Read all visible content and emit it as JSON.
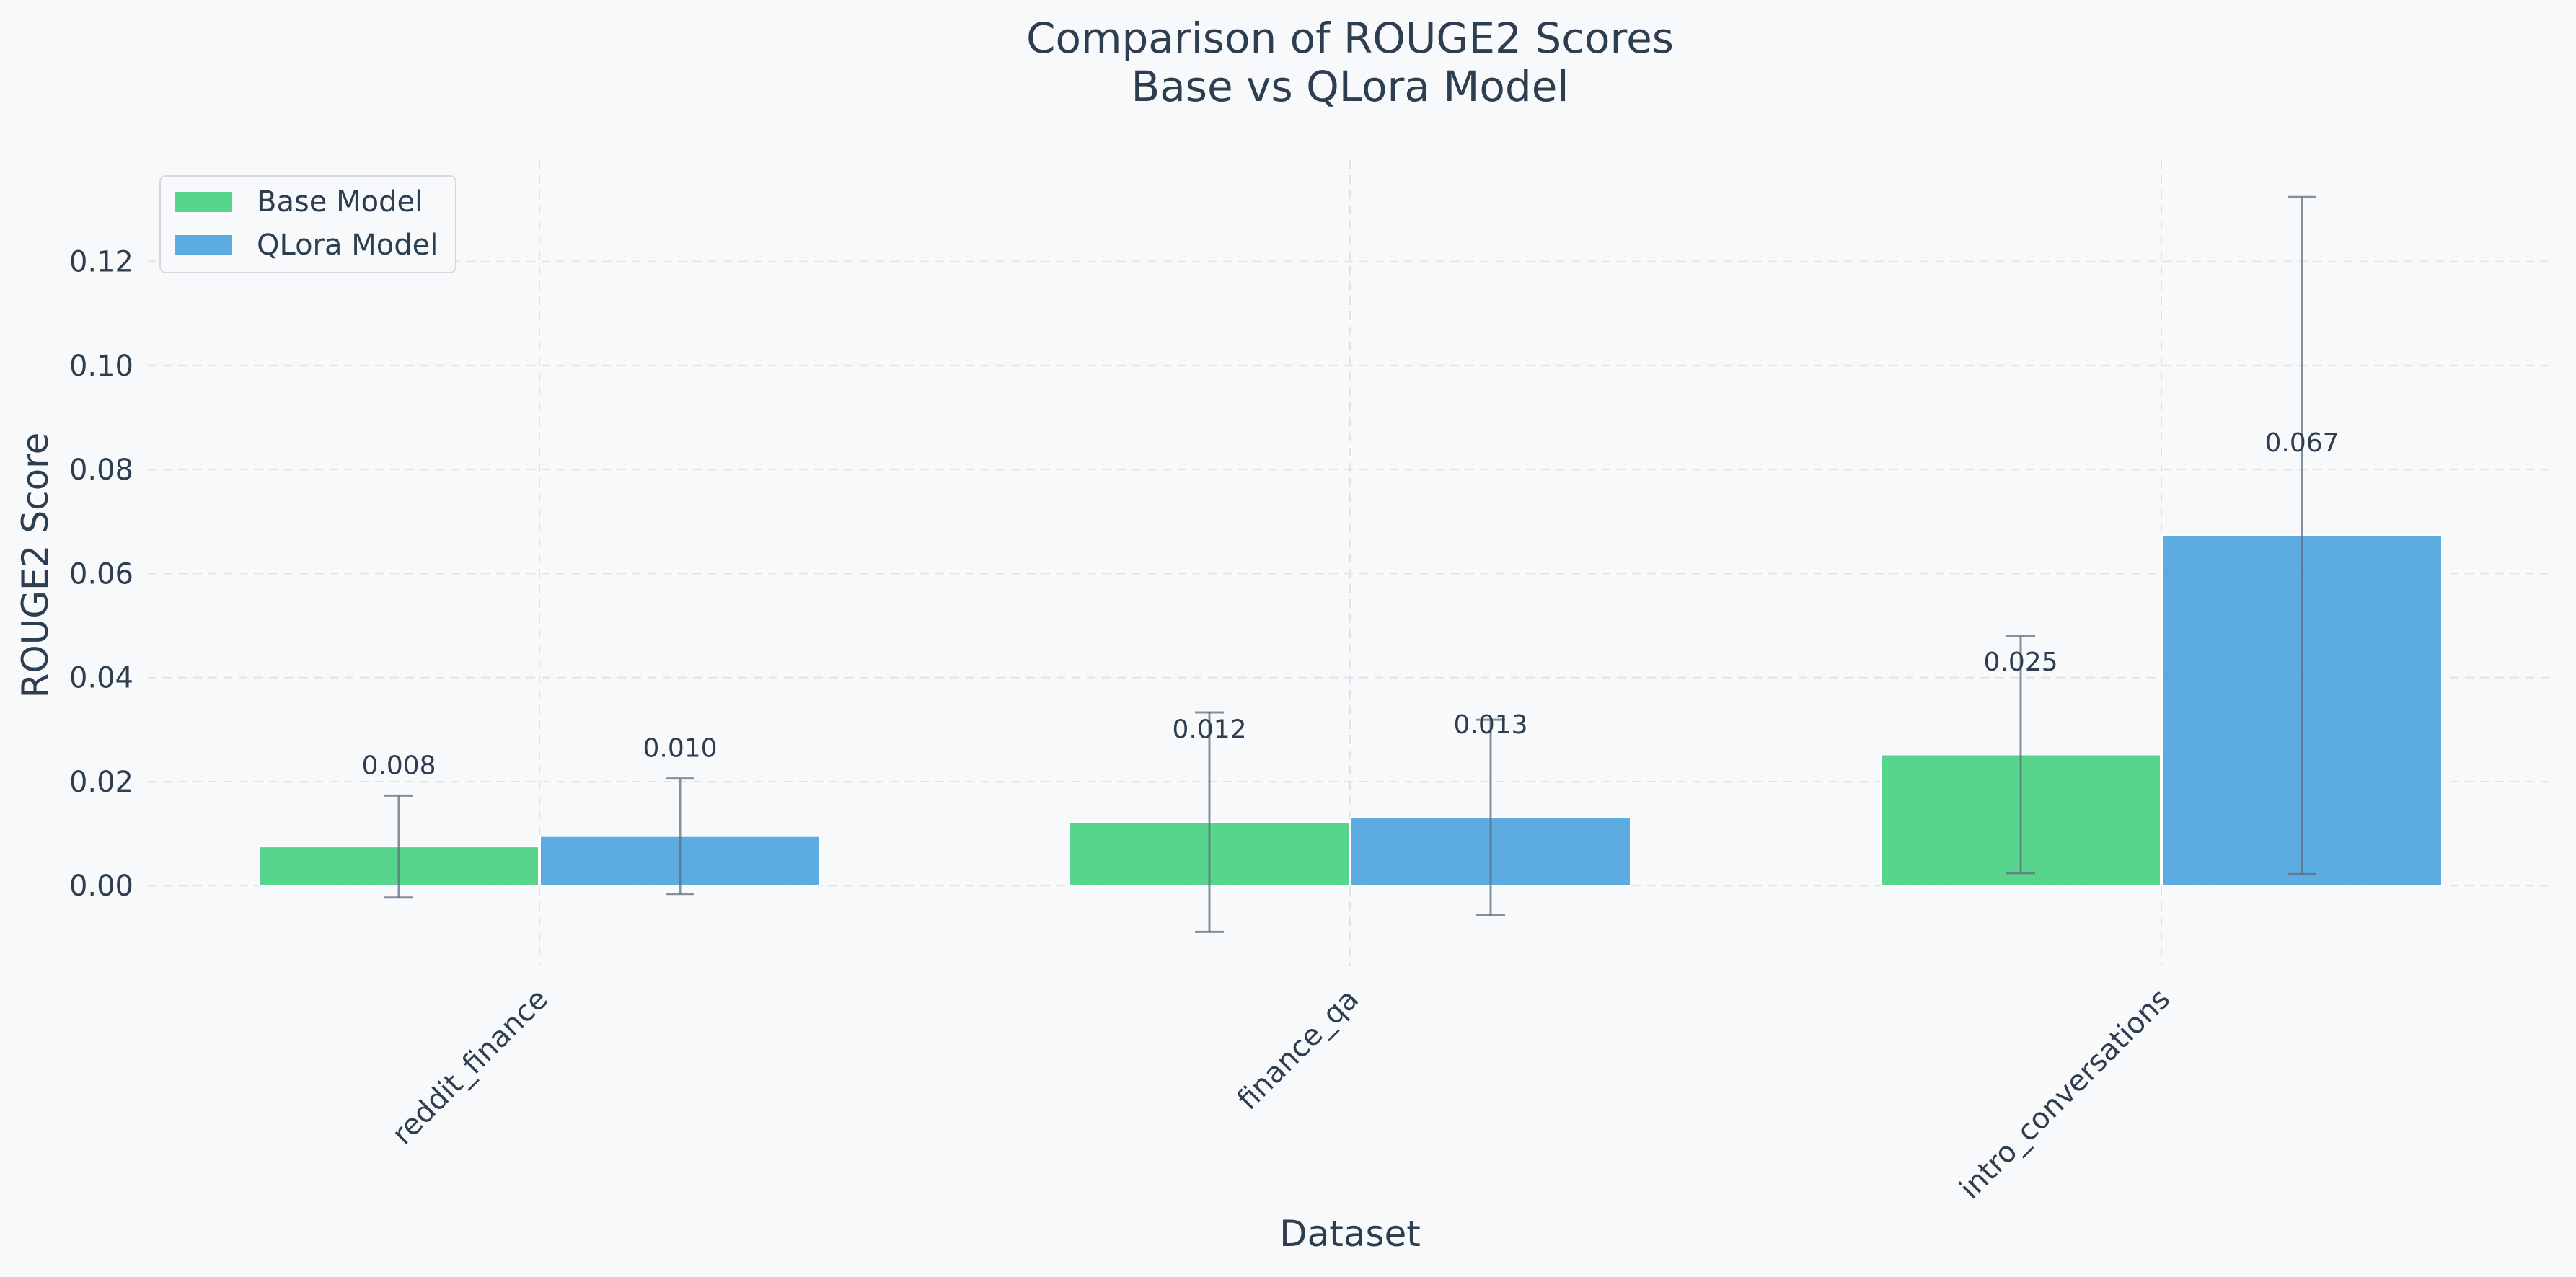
{
  "chart_data": {
    "type": "bar",
    "title": "Comparison of ROUGE2 Scores",
    "subtitle": "Base vs QLora Model",
    "xlabel": "Dataset",
    "ylabel": "ROUGE2 Score",
    "categories": [
      "reddit_finance",
      "finance_qa",
      "intro_conversations"
    ],
    "series": [
      {
        "name": "Base Model",
        "color": "#2ecc71",
        "values": [
          0.0075,
          0.0122,
          0.0252
        ],
        "labels": [
          "0.008",
          "0.012",
          "0.025"
        ],
        "error": [
          0.0098,
          0.0211,
          0.0228
        ]
      },
      {
        "name": "QLora Model",
        "color": "#3498db",
        "values": [
          0.0095,
          0.0131,
          0.0673
        ],
        "labels": [
          "0.010",
          "0.013",
          "0.067"
        ],
        "error": [
          0.0111,
          0.0188,
          0.0651
        ]
      }
    ],
    "ylim": [
      -0.0155,
      0.1395
    ],
    "yticks": [
      0.0,
      0.02,
      0.04,
      0.06,
      0.08,
      0.1,
      0.12
    ],
    "ytick_labels": [
      "0.00",
      "0.02",
      "0.04",
      "0.06",
      "0.08",
      "0.10",
      "0.12"
    ],
    "grid": true,
    "legend_position": "top-left"
  }
}
